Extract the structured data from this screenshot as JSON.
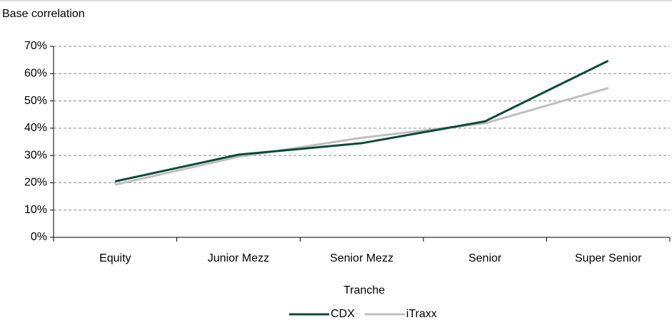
{
  "chart_data": {
    "type": "line",
    "title": "Base correlation",
    "x_label": "Tranche",
    "categories": [
      "Equity",
      "Junior Mezz",
      "Senior Mezz",
      "Senior",
      "Super Senior"
    ],
    "series": [
      {
        "name": "CDX",
        "color": "#0d4a3a",
        "values": [
          20.5,
          30.3,
          34.5,
          42.5,
          64.7
        ]
      },
      {
        "name": "iTraxx",
        "color": "#bfbfbf",
        "values": [
          19.3,
          29.5,
          36.5,
          41.8,
          54.7
        ]
      }
    ],
    "ylim": [
      0,
      70
    ],
    "yticks": [
      {
        "value": 0,
        "label": "0%"
      },
      {
        "value": 10,
        "label": "10%"
      },
      {
        "value": 20,
        "label": "20%"
      },
      {
        "value": 30,
        "label": "30%"
      },
      {
        "value": 40,
        "label": "40%"
      },
      {
        "value": 50,
        "label": "50%"
      },
      {
        "value": 60,
        "label": "60%"
      },
      {
        "value": 70,
        "label": "70%"
      }
    ],
    "grid": true,
    "legend": "bottom"
  }
}
